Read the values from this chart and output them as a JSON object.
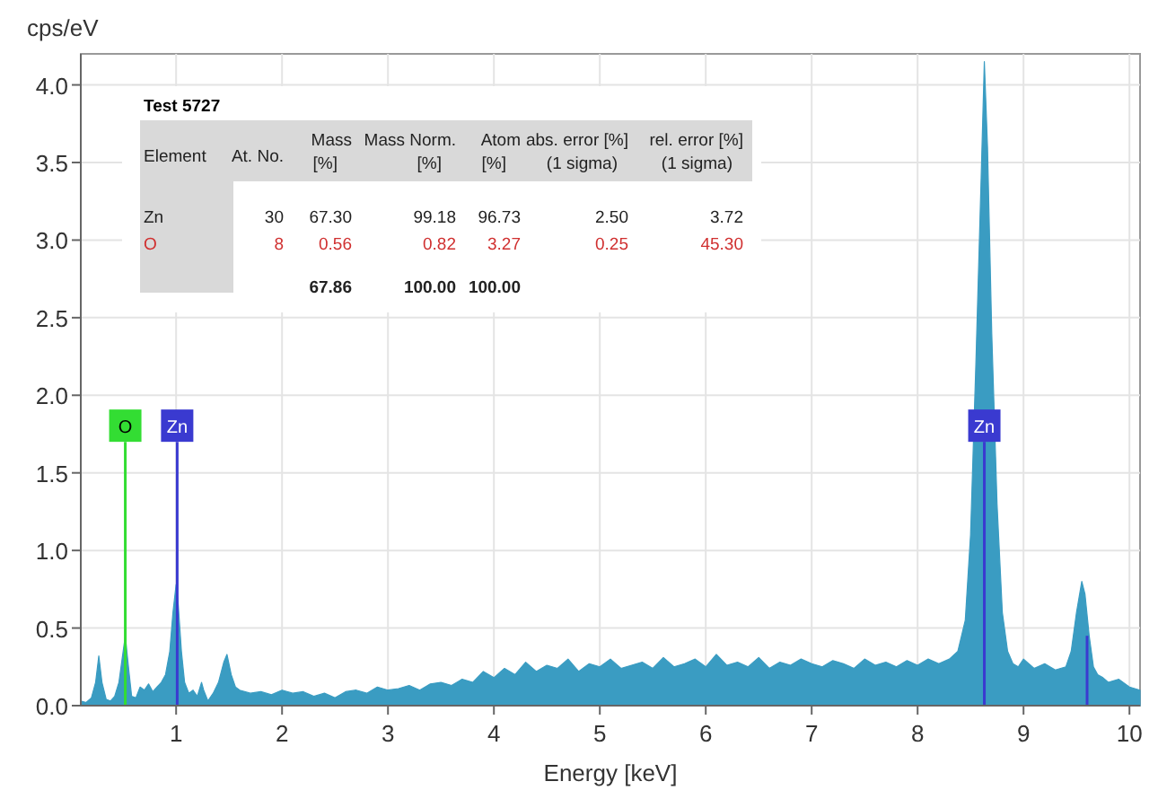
{
  "chart_data": {
    "type": "area",
    "xlabel": "Energy [keV]",
    "ylabel": "cps/eV",
    "xlim": [
      0.1,
      10.1
    ],
    "ylim": [
      0,
      4.2
    ],
    "xticks": [
      1,
      2,
      3,
      4,
      5,
      6,
      7,
      8,
      9,
      10
    ],
    "yticks": [
      {
        "value": 0,
        "label": "0.0"
      },
      {
        "value": 0.5,
        "label": "0.5"
      },
      {
        "value": 1,
        "label": "1.0"
      },
      {
        "value": 1.5,
        "label": "1.5"
      },
      {
        "value": 2,
        "label": "2.0"
      },
      {
        "value": 2.5,
        "label": "2.5"
      },
      {
        "value": 3,
        "label": "3.0"
      },
      {
        "value": 3.5,
        "label": "3.5"
      },
      {
        "value": 4,
        "label": "4.0"
      }
    ],
    "grid": true,
    "series": [
      {
        "color": "#3a9cc2",
        "x": [
          0.1,
          0.15,
          0.2,
          0.24,
          0.27,
          0.3,
          0.34,
          0.38,
          0.42,
          0.46,
          0.49,
          0.52,
          0.55,
          0.58,
          0.62,
          0.66,
          0.7,
          0.74,
          0.78,
          0.82,
          0.86,
          0.9,
          0.94,
          0.97,
          1.0,
          1.02,
          1.05,
          1.08,
          1.12,
          1.16,
          1.2,
          1.24,
          1.26,
          1.3,
          1.35,
          1.4,
          1.45,
          1.48,
          1.52,
          1.56,
          1.6,
          1.7,
          1.8,
          1.9,
          2.0,
          2.1,
          2.2,
          2.3,
          2.4,
          2.5,
          2.6,
          2.7,
          2.8,
          2.9,
          3.0,
          3.1,
          3.2,
          3.3,
          3.4,
          3.5,
          3.6,
          3.7,
          3.8,
          3.9,
          4.0,
          4.1,
          4.2,
          4.3,
          4.4,
          4.5,
          4.6,
          4.7,
          4.8,
          4.9,
          5.0,
          5.1,
          5.2,
          5.3,
          5.4,
          5.5,
          5.6,
          5.7,
          5.8,
          5.9,
          6.0,
          6.1,
          6.2,
          6.3,
          6.4,
          6.5,
          6.6,
          6.7,
          6.8,
          6.9,
          7.0,
          7.1,
          7.2,
          7.3,
          7.4,
          7.5,
          7.6,
          7.7,
          7.8,
          7.9,
          8.0,
          8.1,
          8.2,
          8.3,
          8.38,
          8.45,
          8.5,
          8.55,
          8.6,
          8.63,
          8.66,
          8.7,
          8.75,
          8.8,
          8.85,
          8.9,
          8.95,
          9.0,
          9.1,
          9.2,
          9.3,
          9.4,
          9.45,
          9.5,
          9.55,
          9.58,
          9.62,
          9.66,
          9.7,
          9.75,
          9.8,
          9.9,
          10.0,
          10.1
        ],
        "values": [
          0.03,
          0.02,
          0.05,
          0.15,
          0.32,
          0.15,
          0.04,
          0.03,
          0.06,
          0.15,
          0.3,
          0.45,
          0.25,
          0.06,
          0.05,
          0.12,
          0.1,
          0.14,
          0.09,
          0.12,
          0.15,
          0.2,
          0.35,
          0.6,
          0.78,
          0.65,
          0.35,
          0.15,
          0.08,
          0.1,
          0.06,
          0.15,
          0.1,
          0.03,
          0.08,
          0.15,
          0.28,
          0.33,
          0.2,
          0.12,
          0.1,
          0.08,
          0.09,
          0.07,
          0.1,
          0.08,
          0.09,
          0.06,
          0.08,
          0.05,
          0.09,
          0.1,
          0.08,
          0.12,
          0.1,
          0.11,
          0.13,
          0.1,
          0.14,
          0.15,
          0.13,
          0.17,
          0.15,
          0.22,
          0.18,
          0.24,
          0.2,
          0.28,
          0.22,
          0.26,
          0.24,
          0.3,
          0.22,
          0.27,
          0.25,
          0.3,
          0.24,
          0.26,
          0.28,
          0.24,
          0.31,
          0.25,
          0.27,
          0.3,
          0.25,
          0.33,
          0.26,
          0.28,
          0.25,
          0.31,
          0.24,
          0.28,
          0.26,
          0.3,
          0.27,
          0.25,
          0.29,
          0.27,
          0.24,
          0.3,
          0.26,
          0.28,
          0.25,
          0.29,
          0.26,
          0.3,
          0.27,
          0.3,
          0.35,
          0.55,
          1.1,
          2.2,
          3.4,
          4.15,
          3.6,
          2.4,
          1.3,
          0.6,
          0.35,
          0.27,
          0.25,
          0.3,
          0.24,
          0.27,
          0.23,
          0.25,
          0.35,
          0.6,
          0.8,
          0.72,
          0.45,
          0.25,
          0.2,
          0.18,
          0.15,
          0.17,
          0.12,
          0.1
        ]
      }
    ],
    "ref_lines": [
      {
        "axis": "x",
        "value": 0.52,
        "label": "O",
        "color": "#33dd33"
      },
      {
        "axis": "x",
        "value": 1.01,
        "label": "Zn",
        "color": "#3a3ad0"
      },
      {
        "axis": "x",
        "value": 8.63,
        "label": "Zn",
        "color": "#3a3ad0"
      },
      {
        "axis": "x",
        "value": 9.6,
        "label": null,
        "color": "#3a3ad0"
      }
    ],
    "annotations": [
      "Test 5727",
      "Element",
      "At. No.",
      "Mass\n[%]",
      "Mass Norm.\n[%]",
      "Atom\n[%]",
      "abs. error [%]\n(1 sigma)",
      "rel. error [%]\n(1 sigma)",
      "Zn",
      "30",
      "67.30",
      "99.18",
      "96.73",
      "2.50",
      "3.72",
      "O",
      "8",
      "0.56",
      "0.82",
      "3.27",
      "0.25",
      "45.30",
      "67.86",
      "100.00",
      "100.00"
    ]
  }
}
